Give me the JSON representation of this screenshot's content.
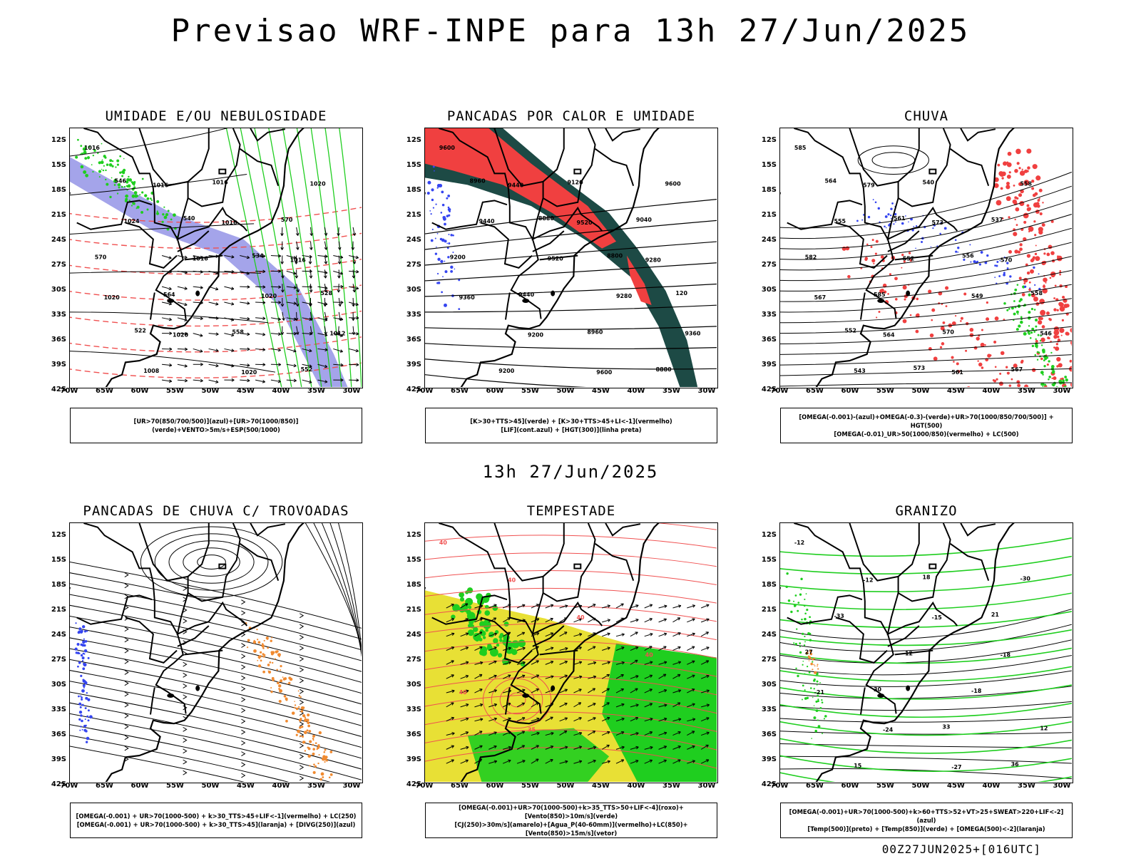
{
  "title": "Previsao WRF-INPE  para 13h 27/Jun/2025",
  "mid_title": "13h 27/Jun/2025",
  "footer": "00Z27JUN2025+[016UTC]",
  "lat_labels": [
    "12S",
    "15S",
    "18S",
    "21S",
    "24S",
    "27S",
    "30S",
    "33S",
    "36S",
    "39S",
    "42S"
  ],
  "lon_labels": [
    "70W",
    "65W",
    "60W",
    "55W",
    "50W",
    "45W",
    "40W",
    "35W",
    "30W"
  ],
  "panels": [
    {
      "title": "UMIDADE E/OU NEBULOSIDADE",
      "legend": [
        "[UR>70(850/700/500)](azul)+[UR>70(1000/850)](verde)+VENTO>5m/s+ESP(500/1000)"
      ],
      "contour_labels": [
        "1016",
        "1016",
        "1016",
        "1016",
        "1020",
        "1020",
        "1020",
        "1020",
        "1024",
        "1016",
        "1020",
        "1012",
        "1008",
        "1016",
        "570",
        "570",
        "564",
        "558",
        "552",
        "546",
        "540",
        "534",
        "528",
        "522"
      ]
    },
    {
      "title": "PANCADAS POR CALOR E UMIDADE",
      "legend": [
        "[K>30+TTS>45](verde) + [K>30+TTS>45+LI<-1](vermelho)",
        "[LIF](cont.azul) + [HGT(300)](linha preta)"
      ],
      "contour_labels": [
        "9600",
        "9440",
        "9520",
        "9280",
        "9360",
        "9200",
        "9600",
        "9600",
        "9440",
        "9520",
        "9280",
        "9360",
        "9200",
        "9120",
        "9040",
        "9200",
        "9440",
        "8960",
        "8880",
        "8960",
        "8880",
        "8800",
        "120"
      ]
    },
    {
      "title": "CHUVA",
      "legend": [
        "[OMEGA(-0.001)-(azul)+OMEGA(-0.3)-(verde)+UR>70(1000/850/700/500)] + HGT(500)",
        "[OMEGA(-0.01)_UR>50(1000/850)(vermelho) + LC(500)"
      ],
      "contour_labels": [
        "585",
        "579",
        "573",
        "570",
        "567",
        "564",
        "561",
        "558",
        "555",
        "552",
        "549",
        "546",
        "543",
        "540",
        "537",
        "582",
        "585",
        "570",
        "567",
        "564",
        "561",
        "556",
        "558",
        "552",
        "573"
      ]
    },
    {
      "title": "PANCADAS DE CHUVA C/ TROVOADAS",
      "legend": [
        "[OMEGA(-0.001) + UR>70(1000-500) + k>30_TTS>45+LIF<-1](vermelho) + LC(250)",
        "[OMEGA(-0.001) + UR>70(1000-500) + k>30_TTS>45](laranja) + [DIVG(250)](azul)"
      ],
      "contour_labels": []
    },
    {
      "title": "TEMPESTADE",
      "legend": [
        "[OMEGA(-0.001)+UR>70(1000-500)+k>35_TTS>50+LIF<-4](roxo)+[Vento(850)>10m/s](verde)",
        "[CJ(250)>30m/s](amarelo)+[Agua_P(40-60mm)](vermelho)+LC(850)+[Vento(850)>15m/s](vetor)"
      ],
      "contour_labels": [
        "40",
        "40",
        "40",
        "40",
        "40",
        "35"
      ]
    },
    {
      "title": "GRANIZO",
      "legend": [
        "[OMEGA(-0.001)+UR>70(1000-500)+k>60+TTS>52+VT>25+SWEAT>220+LIF<-2](azul)",
        "[Temp(500)](preto) + [Temp(850)](verde) + [OMEGA(500)<-2](laranja)"
      ],
      "contour_labels": [
        "-12",
        "-12",
        "-15",
        "-18",
        "-21",
        "-24",
        "-27",
        "-30",
        "-33",
        "-12",
        "-18",
        "12",
        "15",
        "18",
        "21",
        "27",
        "30",
        "33",
        "36"
      ]
    }
  ],
  "colors": {
    "green": "#1fce1f",
    "blue": "#3545f0",
    "red": "#f04040",
    "dark_teal": "#1d4a45",
    "lavender": "#9a9ae8",
    "yellow": "#e8e035",
    "orange": "#f08a30",
    "contour_red": "#f05050"
  }
}
